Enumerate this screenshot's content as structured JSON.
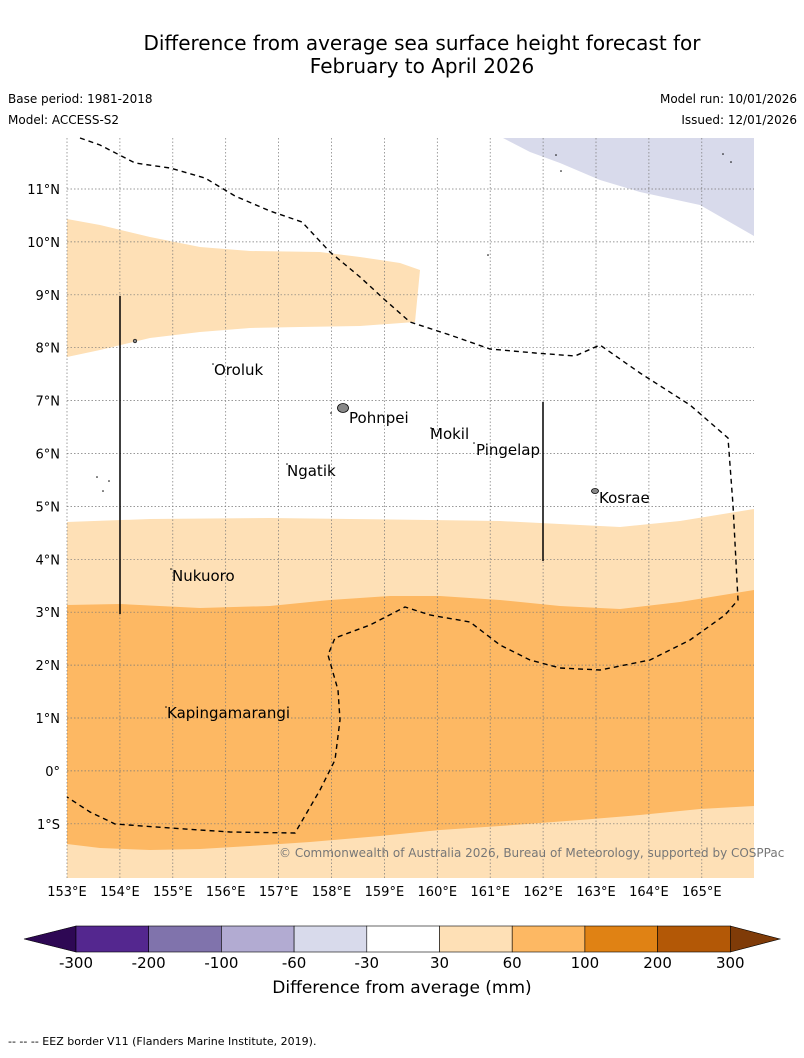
{
  "title": {
    "line1": "Difference from average sea surface height forecast for",
    "line2": "February to April 2026"
  },
  "meta": {
    "base_period": "Base period: 1981-2018",
    "model": "Model: ACCESS-S2",
    "model_run": "Model run: 10/01/2026",
    "issued": "Issued: 12/01/2026"
  },
  "map": {
    "lon_ticks": [
      "153°E",
      "154°E",
      "155°E",
      "156°E",
      "157°E",
      "158°E",
      "159°E",
      "160°E",
      "161°E",
      "162°E",
      "163°E",
      "164°E",
      "165°E"
    ],
    "lat_ticks": [
      "11°N",
      "10°N",
      "9°N",
      "8°N",
      "7°N",
      "6°N",
      "5°N",
      "4°N",
      "3°N",
      "2°N",
      "1°N",
      "0°",
      "1°S"
    ],
    "places": [
      "Oroluk",
      "Pohnpei",
      "Mokil",
      "Pingelap",
      "Ngatik",
      "Kosrae",
      "Nukuoro",
      "Kapingamarangi"
    ],
    "copyright": "© Commonwealth of Australia 2026, Bureau of Meteorology, supported by COSPPac"
  },
  "colorbar": {
    "label": "Difference from average (mm)",
    "ticks": [
      "-300",
      "-200",
      "-100",
      "-60",
      "-30",
      "30",
      "60",
      "100",
      "200",
      "300"
    ],
    "colors": {
      "lt_neg300": "#2e0854",
      "neg300_neg200": "#54278f",
      "neg200_neg100": "#8073ac",
      "neg100_neg60": "#b2abd2",
      "neg60_neg30": "#d8daeb",
      "neg30_30": "#ffffff",
      "p30_60": "#fee0b6",
      "p60_100": "#fdb863",
      "p100_200": "#e08214",
      "p200_300": "#b35806",
      "gt_300": "#7f3b08"
    }
  },
  "footer": "--  --  -- EEZ border V11 (Flanders Marine Institute, 2019)."
}
